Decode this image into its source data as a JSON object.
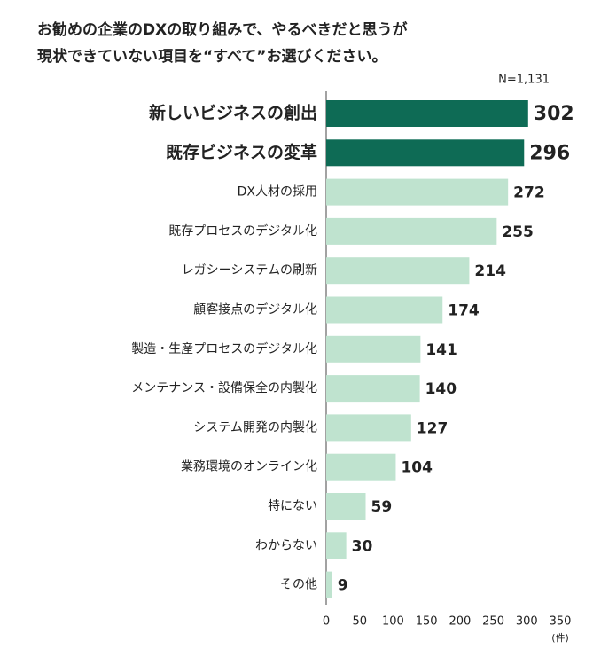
{
  "chart_data": {
    "type": "bar",
    "orientation": "horizontal",
    "title": [
      "お勧めの企業のDXの取り組みで、やるべきだと思うが",
      "現状できていない項目を“すべて”お選びください。"
    ],
    "note": "N=1,131",
    "x_unit": "(件)",
    "categories": [
      "新しいビジネスの創出",
      "既存ビジネスの変革",
      "DX人材の採用",
      "既存プロセスのデジタル化",
      "レガシーシステムの刷新",
      "顧客接点のデジタル化",
      "製造・生産プロセスのデジタル化",
      "メンテナンス・設備保全の内製化",
      "システム開発の内製化",
      "業務環境のオンライン化",
      "特にない",
      "わからない",
      "その他"
    ],
    "values": [
      302,
      296,
      272,
      255,
      214,
      174,
      141,
      140,
      127,
      104,
      59,
      30,
      9
    ],
    "colors": [
      "#0e6b55",
      "#0e6b55",
      "#bfe3cf",
      "#bfe3cf",
      "#bfe3cf",
      "#bfe3cf",
      "#bfe3cf",
      "#bfe3cf",
      "#bfe3cf",
      "#bfe3cf",
      "#bfe3cf",
      "#bfe3cf",
      "#bfe3cf"
    ],
    "highlight_color": "#0e6b55",
    "xlim": [
      0,
      350
    ],
    "xticks": [
      0,
      50,
      100,
      150,
      200,
      250,
      300,
      350
    ],
    "grid": false
  }
}
